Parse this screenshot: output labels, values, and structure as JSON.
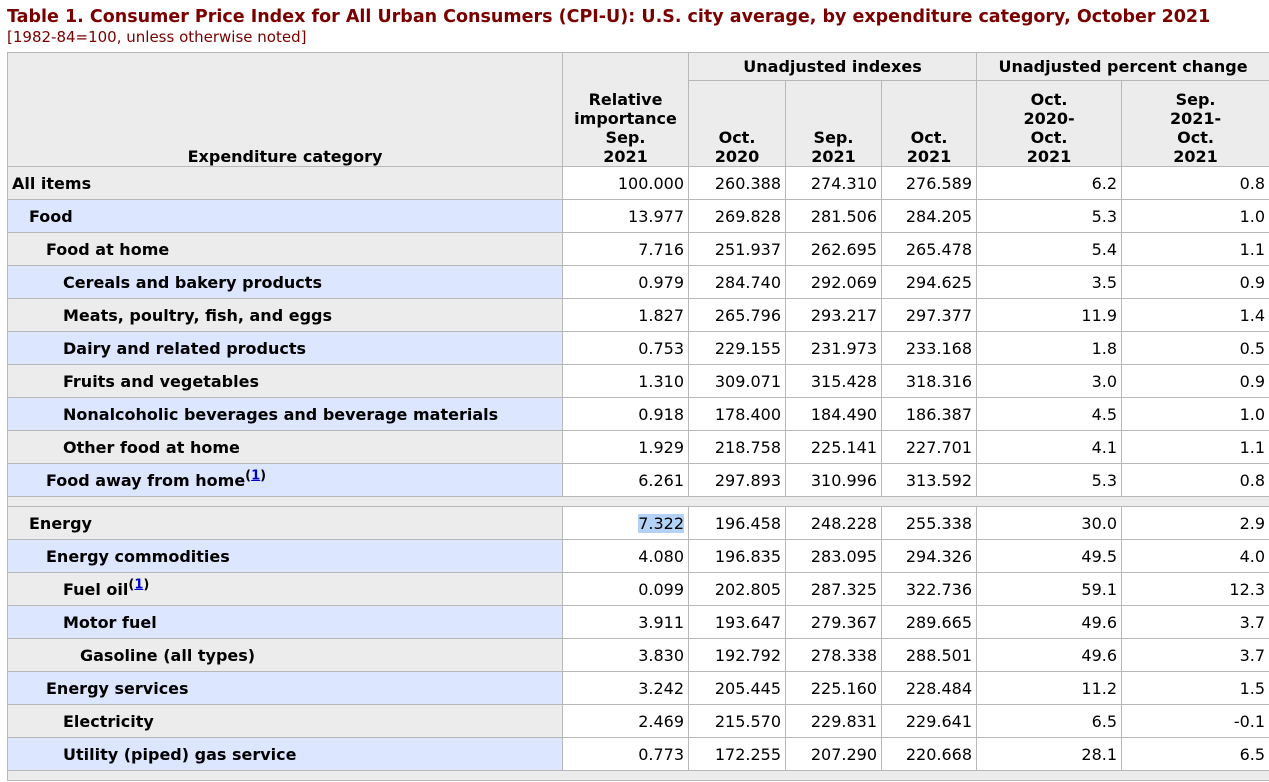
{
  "title": "Table 1. Consumer Price Index for All Urban Consumers (CPI-U): U.S. city average, by expenditure category, October 2021",
  "subtitle": "[1982-84=100, unless otherwise noted]",
  "headers": {
    "category": "Expenditure category",
    "relative_importance": [
      "Relative",
      "importance",
      "Sep.",
      "2021"
    ],
    "group_indexes": "Unadjusted indexes",
    "group_pct": "Unadjusted percent change",
    "idx_oct2020": [
      "Oct.",
      "2020"
    ],
    "idx_sep2021": [
      "Sep.",
      "2021"
    ],
    "idx_oct2021": [
      "Oct.",
      "2021"
    ],
    "pct_year": [
      "Oct.",
      "2020-",
      "Oct.",
      "2021"
    ],
    "pct_month": [
      "Sep.",
      "2021-",
      "Oct.",
      "2021"
    ]
  },
  "rows": [
    {
      "label": "All items",
      "level": 0,
      "ri": "100.000",
      "oct2020": "260.388",
      "sep2021": "274.310",
      "oct2021": "276.589",
      "pct12": "6.2",
      "pct1": "0.8"
    },
    {
      "label": "Food",
      "level": 1,
      "ri": "13.977",
      "oct2020": "269.828",
      "sep2021": "281.506",
      "oct2021": "284.205",
      "pct12": "5.3",
      "pct1": "1.0"
    },
    {
      "label": "Food at home",
      "level": 2,
      "ri": "7.716",
      "oct2020": "251.937",
      "sep2021": "262.695",
      "oct2021": "265.478",
      "pct12": "5.4",
      "pct1": "1.1"
    },
    {
      "label": "Cereals and bakery products",
      "level": 3,
      "ri": "0.979",
      "oct2020": "284.740",
      "sep2021": "292.069",
      "oct2021": "294.625",
      "pct12": "3.5",
      "pct1": "0.9"
    },
    {
      "label": "Meats, poultry, fish, and eggs",
      "level": 3,
      "ri": "1.827",
      "oct2020": "265.796",
      "sep2021": "293.217",
      "oct2021": "297.377",
      "pct12": "11.9",
      "pct1": "1.4"
    },
    {
      "label": "Dairy and related products",
      "level": 3,
      "ri": "0.753",
      "oct2020": "229.155",
      "sep2021": "231.973",
      "oct2021": "233.168",
      "pct12": "1.8",
      "pct1": "0.5"
    },
    {
      "label": "Fruits and vegetables",
      "level": 3,
      "ri": "1.310",
      "oct2020": "309.071",
      "sep2021": "315.428",
      "oct2021": "318.316",
      "pct12": "3.0",
      "pct1": "0.9"
    },
    {
      "label": "Nonalcoholic beverages and beverage materials",
      "level": 3,
      "ri": "0.918",
      "oct2020": "178.400",
      "sep2021": "184.490",
      "oct2021": "186.387",
      "pct12": "4.5",
      "pct1": "1.0"
    },
    {
      "label": "Other food at home",
      "level": 3,
      "ri": "1.929",
      "oct2020": "218.758",
      "sep2021": "225.141",
      "oct2021": "227.701",
      "pct12": "4.1",
      "pct1": "1.1"
    },
    {
      "label": "Food away from home",
      "footnote": "1",
      "level": 2,
      "ri": "6.261",
      "oct2020": "297.893",
      "sep2021": "310.996",
      "oct2021": "313.592",
      "pct12": "5.3",
      "pct1": "0.8"
    },
    {
      "spacer": true
    },
    {
      "label": "Energy",
      "level": 1,
      "ri": "7.322",
      "ri_selected": true,
      "oct2020": "196.458",
      "sep2021": "248.228",
      "oct2021": "255.338",
      "pct12": "30.0",
      "pct1": "2.9"
    },
    {
      "label": "Energy commodities",
      "level": 2,
      "ri": "4.080",
      "oct2020": "196.835",
      "sep2021": "283.095",
      "oct2021": "294.326",
      "pct12": "49.5",
      "pct1": "4.0"
    },
    {
      "label": "Fuel oil",
      "footnote": "1",
      "level": 3,
      "ri": "0.099",
      "oct2020": "202.805",
      "sep2021": "287.325",
      "oct2021": "322.736",
      "pct12": "59.1",
      "pct1": "12.3"
    },
    {
      "label": "Motor fuel",
      "level": 3,
      "ri": "3.911",
      "oct2020": "193.647",
      "sep2021": "279.367",
      "oct2021": "289.665",
      "pct12": "49.6",
      "pct1": "3.7"
    },
    {
      "label": "Gasoline (all types)",
      "level": 4,
      "ri": "3.830",
      "oct2020": "192.792",
      "sep2021": "278.338",
      "oct2021": "288.501",
      "pct12": "49.6",
      "pct1": "3.7"
    },
    {
      "label": "Energy services",
      "level": 2,
      "ri": "3.242",
      "oct2020": "205.445",
      "sep2021": "225.160",
      "oct2021": "228.484",
      "pct12": "11.2",
      "pct1": "1.5"
    },
    {
      "label": "Electricity",
      "level": 3,
      "ri": "2.469",
      "oct2020": "215.570",
      "sep2021": "229.831",
      "oct2021": "229.641",
      "pct12": "6.5",
      "pct1": "-0.1"
    },
    {
      "label": "Utility (piped) gas service",
      "level": 3,
      "ri": "0.773",
      "oct2020": "172.255",
      "sep2021": "207.290",
      "oct2021": "220.668",
      "pct12": "28.1",
      "pct1": "6.5"
    },
    {
      "spacer": true
    }
  ]
}
